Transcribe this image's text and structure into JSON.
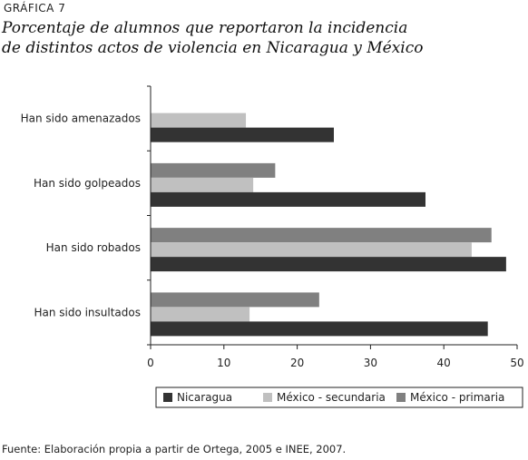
{
  "figure": {
    "label": "GRÁFICA 7",
    "title_line1": "Porcentaje de alumnos que reportaron la incidencia",
    "title_line2": "de distintos actos de violencia en Nicaragua y México",
    "source": "Fuente: Elaboración propia a partir de Ortega, 2005 e INEE, 2007."
  },
  "chart_data": {
    "type": "bar",
    "orientation": "horizontal",
    "categories": [
      "Han sido amenazados",
      "Han sido golpeados",
      "Han sido robados",
      "Han sido insultados"
    ],
    "series": [
      {
        "name": "Nicaragua",
        "color": "#333333",
        "values": [
          25,
          37.5,
          48.5,
          46
        ]
      },
      {
        "name": "México - secundaria",
        "color": "#c0c0c0",
        "values": [
          13,
          14,
          43.8,
          13.5
        ]
      },
      {
        "name": "México - primaria",
        "color": "#808080",
        "values": [
          null,
          17,
          46.5,
          23
        ]
      }
    ],
    "xlim": [
      0,
      50
    ],
    "xticks": [
      0,
      10,
      20,
      30,
      40,
      50
    ],
    "grid": false,
    "legend_position": "bottom",
    "xlabel": "",
    "ylabel": ""
  }
}
